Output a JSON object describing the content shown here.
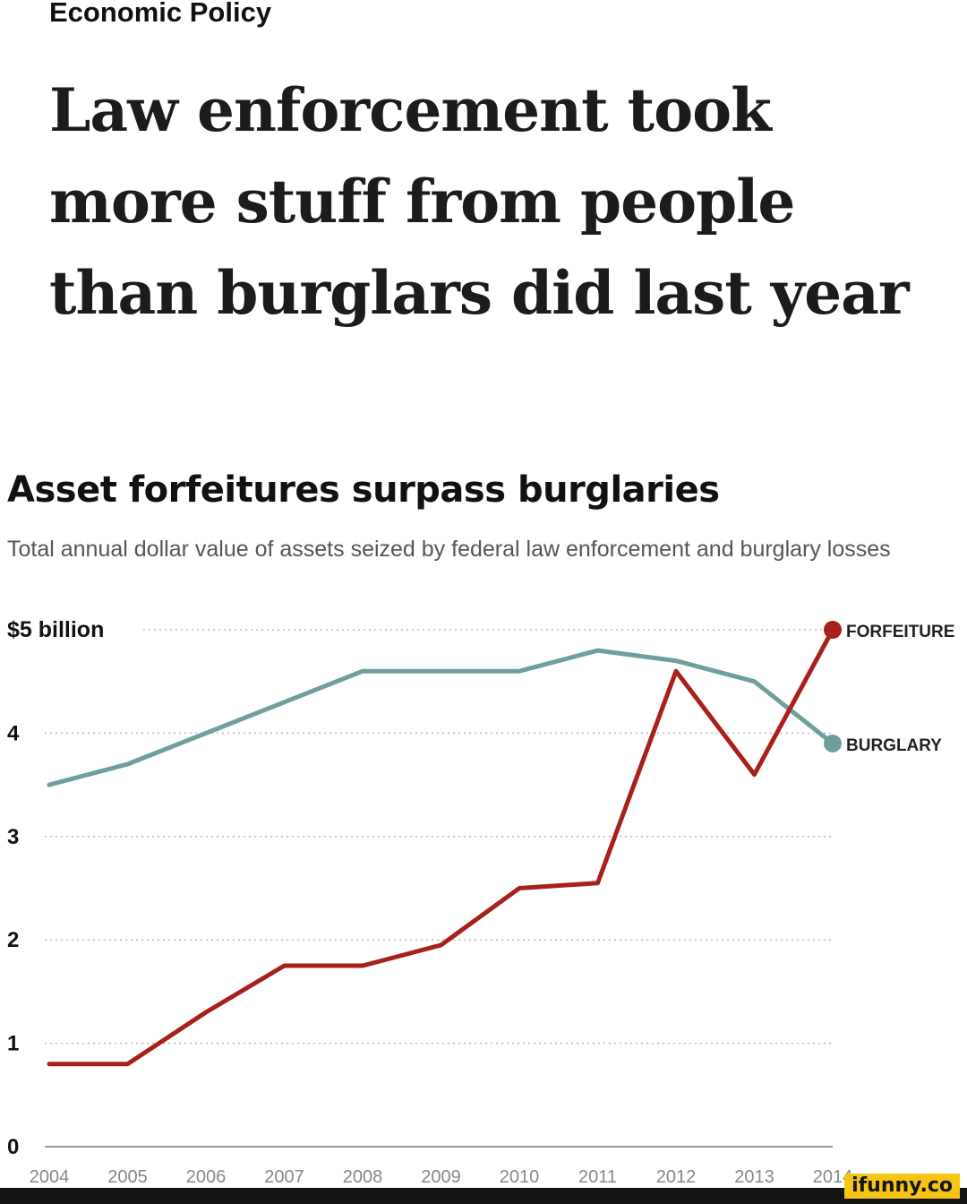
{
  "section": "Economic Policy",
  "headline": "Law enforcement took more stuff from people than burglars did last year",
  "chart_data": {
    "type": "line",
    "title": "Asset forfeitures surpass burglaries",
    "subtitle": "Total annual dollar value of assets seized by federal law enforcement and burglary losses",
    "x": [
      2004,
      2005,
      2006,
      2007,
      2008,
      2009,
      2010,
      2011,
      2012,
      2013,
      2014
    ],
    "xlabels": [
      "2004",
      "2005",
      "2006",
      "2007",
      "2008",
      "2009",
      "2010",
      "2011",
      "2012",
      "2013",
      "2014"
    ],
    "yticks": [
      {
        "value": 5,
        "label": "$5 billion"
      },
      {
        "value": 4,
        "label": "4"
      },
      {
        "value": 3,
        "label": "3"
      },
      {
        "value": 2,
        "label": "2"
      },
      {
        "value": 1,
        "label": "1"
      },
      {
        "value": 0,
        "label": "0"
      }
    ],
    "ylim": [
      0,
      5
    ],
    "grid": "dotted horizontal",
    "series": [
      {
        "name": "BURGLARY",
        "color": "#6e9f9d",
        "values": [
          3.5,
          3.7,
          4.0,
          4.3,
          4.6,
          4.6,
          4.6,
          4.8,
          4.7,
          4.5,
          3.9
        ]
      },
      {
        "name": "FORFEITURE",
        "color": "#a8201a",
        "values": [
          0.8,
          0.8,
          1.3,
          1.75,
          1.75,
          1.95,
          2.5,
          2.55,
          4.6,
          3.6,
          5.0
        ]
      }
    ]
  },
  "watermark": "ifunny.co"
}
